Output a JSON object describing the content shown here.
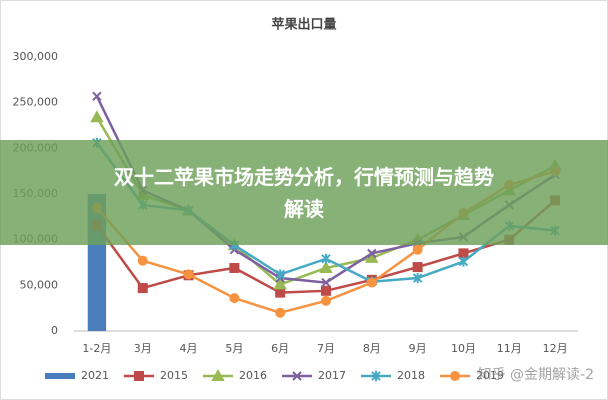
{
  "chart_data": {
    "type": "line",
    "title": "苹果出口量",
    "categories": [
      "1-2月",
      "3月",
      "4月",
      "5月",
      "6月",
      "7月",
      "8月",
      "9月",
      "10月",
      "11月",
      "12月"
    ],
    "ylim": [
      0,
      300000
    ],
    "yticks": [
      0,
      {
        "value": 50000,
        "label": "50,000"
      },
      {
        "value": 100000,
        "label": "100,000"
      },
      {
        "value": 150000,
        "label": "150,000"
      },
      {
        "value": 200000,
        "label": "200,000"
      },
      {
        "value": 250000,
        "label": "250,000"
      },
      {
        "value": 300000,
        "label": "300,000"
      }
    ],
    "grid": false,
    "series": [
      {
        "name": "2021",
        "type": "bar",
        "color": "#4a7ebb",
        "values": [
          150000,
          null,
          null,
          null,
          null,
          null,
          null,
          null,
          null,
          null,
          null
        ]
      },
      {
        "name": "2015",
        "marker": "square",
        "color": "#be4b48",
        "values": [
          116000,
          47000,
          61000,
          69000,
          42000,
          44000,
          56000,
          70000,
          85000,
          100000,
          143000
        ]
      },
      {
        "name": "2016",
        "marker": "triangle",
        "color": "#98b954",
        "values": [
          234000,
          149000,
          132000,
          94000,
          51000,
          69000,
          80000,
          100000,
          127000,
          154000,
          181000
        ]
      },
      {
        "name": "2017",
        "marker": "cross",
        "color": "#7d60a0",
        "values": [
          257000,
          154000,
          132000,
          89000,
          58000,
          53000,
          85000,
          96000,
          103000,
          138000,
          171000
        ]
      },
      {
        "name": "2018",
        "marker": "star",
        "color": "#46aac5",
        "values": [
          206000,
          138000,
          132000,
          94000,
          62000,
          79000,
          54000,
          58000,
          76000,
          115000,
          110000
        ]
      },
      {
        "name": "2019",
        "marker": "circle",
        "color": "#f69240",
        "values": [
          135000,
          77000,
          62000,
          36000,
          20000,
          33000,
          53000,
          89000,
          129000,
          160000,
          175000
        ]
      }
    ]
  },
  "banner": {
    "title": "双十二苹果市场走势分析，行情预测与趋势解读"
  },
  "watermark": "知乎 @金期解读-2"
}
